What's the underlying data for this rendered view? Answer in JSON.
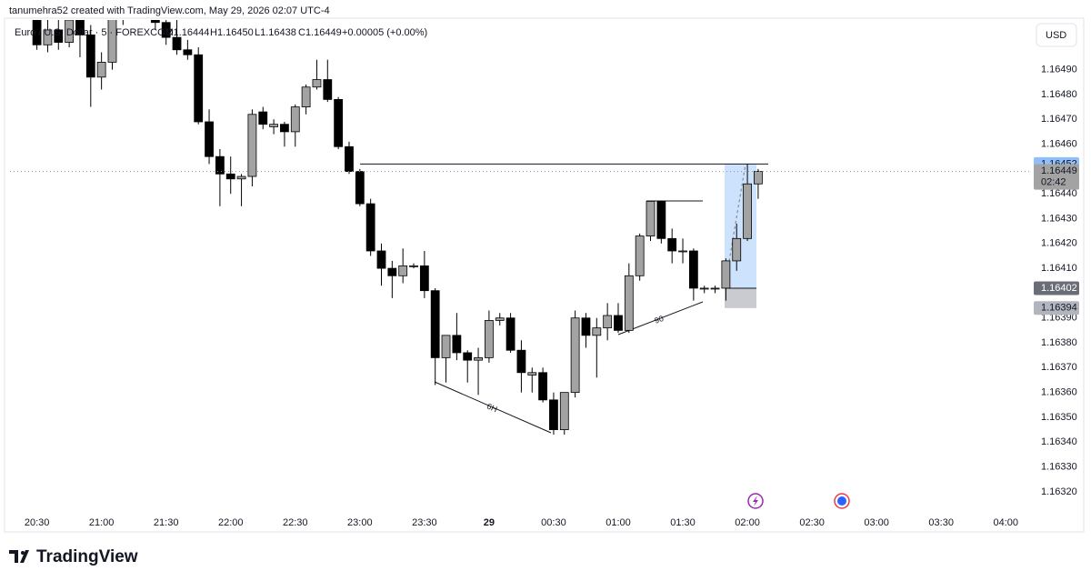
{
  "header": {
    "credit": "tanumehra52 created with TradingView.com, May 29, 2026 02:07 UTC-4",
    "currency": "USD",
    "brand": "TradingView"
  },
  "chart_data": {
    "type": "candlestick",
    "legend": {
      "symbol": "Euro / U.S. Dollar · 5 · FOREXCOM",
      "open": "O1.16444",
      "high": "H1.16450",
      "low": "L1.16438",
      "close": "C1.16449",
      "change": "+0.00005 (+0.00%)"
    },
    "categories": [
      null,
      null,
      "20:30",
      null,
      null,
      null,
      null,
      null,
      "21:00",
      null,
      null,
      null,
      null,
      null,
      "21:30",
      null,
      null,
      null,
      null,
      null,
      "22:00",
      null,
      null,
      null,
      null,
      null,
      "22:30",
      null,
      null,
      null,
      null,
      null,
      "23:00",
      null,
      null,
      null,
      null,
      null,
      "23:30",
      null,
      null,
      null,
      null,
      null,
      "29",
      null,
      null,
      null,
      null,
      null,
      "00:30",
      null,
      null,
      null,
      null,
      null,
      "01:00",
      null,
      null,
      null,
      null,
      null,
      "01:30",
      null,
      null,
      null,
      null,
      null,
      "02:00",
      null,
      null,
      null,
      null,
      null,
      "02:30",
      null,
      null,
      null,
      null,
      null,
      "03:00",
      null,
      null,
      null,
      null,
      null,
      "03:30",
      null,
      null,
      null,
      null,
      null,
      "04:00",
      null
    ],
    "open": [
      null,
      null,
      1.16512,
      1.165,
      1.16506,
      1.16501,
      1.1651,
      1.16504,
      1.16487,
      1.16493,
      1.16512,
      1.1652,
      1.16518,
      1.16514,
      1.16509,
      1.16503,
      1.16498,
      1.16496,
      1.16469,
      1.16455,
      1.16448,
      1.16446,
      1.16447,
      1.16473,
      1.16467,
      1.16468,
      1.16465,
      1.16475,
      1.16483,
      1.16486,
      1.16478,
      1.16459,
      1.16449,
      1.16436,
      1.16417,
      1.1641,
      1.16407,
      1.16411,
      1.16411,
      1.16401,
      1.16374,
      1.16383,
      1.16376,
      1.16373,
      1.16374,
      1.16389,
      1.1639,
      1.16377,
      1.16367,
      1.16368,
      1.16357,
      1.16345,
      1.1636,
      1.1639,
      1.16383,
      1.16386,
      1.16391,
      1.16385,
      1.16407,
      1.16423,
      1.16437,
      1.16422,
      1.16417,
      1.16417,
      1.16402,
      1.16402,
      1.16402,
      1.16413,
      1.16422,
      1.16444,
      null,
      null,
      null,
      null,
      null,
      null,
      null,
      null,
      null,
      null,
      null,
      null,
      null,
      null,
      null,
      null,
      null,
      null,
      null,
      null,
      null,
      null,
      null,
      null
    ],
    "high": [
      null,
      null,
      1.1652,
      1.16512,
      1.1651,
      1.16515,
      1.16515,
      1.16508,
      1.16497,
      1.1652,
      1.16525,
      1.1653,
      1.16524,
      1.16518,
      1.16512,
      1.16512,
      1.16502,
      1.16499,
      1.16474,
      1.16458,
      1.16455,
      1.16448,
      1.16474,
      1.16475,
      1.1647,
      1.16469,
      1.16476,
      1.16484,
      1.16494,
      1.16494,
      1.16479,
      1.16461,
      1.1645,
      1.16438,
      1.1642,
      1.16413,
      1.16418,
      1.16412,
      1.16417,
      1.16402,
      1.16383,
      1.16392,
      1.16377,
      1.16378,
      1.16393,
      1.16392,
      1.16392,
      1.16381,
      1.1637,
      1.1637,
      1.1636,
      1.1636,
      1.16393,
      1.16392,
      1.1639,
      1.16396,
      1.16396,
      1.16412,
      1.16424,
      1.16437,
      1.16437,
      1.16426,
      1.16422,
      1.16418,
      1.16403,
      1.16403,
      1.16414,
      1.16428,
      1.16452,
      1.1645,
      null,
      null,
      null,
      null,
      null,
      null,
      null,
      null,
      null,
      null,
      null,
      null,
      null,
      null,
      null,
      null,
      null,
      null,
      null,
      null,
      null,
      null,
      null,
      null
    ],
    "low": [
      null,
      null,
      1.16498,
      1.16497,
      1.16498,
      1.16499,
      1.16495,
      1.16475,
      1.16482,
      1.1649,
      1.16508,
      1.16515,
      1.1651,
      1.16506,
      1.165,
      1.16496,
      1.16494,
      1.16468,
      1.16452,
      1.16435,
      1.1644,
      1.16435,
      1.16443,
      1.16466,
      1.16464,
      1.16459,
      1.16459,
      1.16472,
      1.16482,
      1.16477,
      1.16458,
      1.16448,
      1.16435,
      1.16415,
      1.16403,
      1.16398,
      1.16404,
      1.1641,
      1.16398,
      1.16363,
      1.16364,
      1.16373,
      1.16364,
      1.16359,
      1.16372,
      1.16387,
      1.16376,
      1.1636,
      1.1636,
      1.16356,
      1.16343,
      1.16343,
      1.16358,
      1.16378,
      1.16366,
      1.16381,
      1.16384,
      1.16384,
      1.16405,
      1.16421,
      1.1642,
      1.16412,
      1.16412,
      1.16397,
      1.164,
      1.164,
      1.16397,
      1.16409,
      1.16421,
      1.16438,
      null,
      null,
      null,
      null,
      null,
      null,
      null,
      null,
      null,
      null,
      null,
      null,
      null,
      null,
      null,
      null,
      null,
      null,
      null,
      null,
      null,
      null,
      null,
      null
    ],
    "close": [
      null,
      null,
      1.165,
      1.16506,
      1.16501,
      1.1651,
      1.16504,
      1.16487,
      1.16493,
      1.16512,
      1.1652,
      1.16518,
      1.16514,
      1.16509,
      1.16503,
      1.16498,
      1.16496,
      1.16469,
      1.16455,
      1.16448,
      1.16446,
      1.16447,
      1.16472,
      1.16468,
      1.16468,
      1.16465,
      1.16475,
      1.16483,
      1.16486,
      1.16478,
      1.16459,
      1.16449,
      1.16436,
      1.16417,
      1.1641,
      1.16407,
      1.16411,
      1.16411,
      1.16401,
      1.16374,
      1.16383,
      1.16376,
      1.16373,
      1.16374,
      1.16389,
      1.1639,
      1.16377,
      1.16368,
      1.16368,
      1.16357,
      1.16345,
      1.1636,
      1.1639,
      1.16383,
      1.16386,
      1.16391,
      1.16385,
      1.16407,
      1.16423,
      1.16437,
      1.16422,
      1.16417,
      1.16417,
      1.16402,
      1.16402,
      1.16402,
      1.16413,
      1.16422,
      1.16444,
      1.16449,
      null,
      null,
      null,
      null,
      null,
      null,
      null,
      null,
      null,
      null,
      null,
      null,
      null,
      null,
      null,
      null,
      null,
      null,
      null,
      null,
      null,
      null,
      null,
      null
    ],
    "up_color": "#a3a3a3",
    "down_color": "#000000",
    "wick_color": "#000000",
    "ylim": [
      1.16313,
      1.1651
    ],
    "yticks": [
      {
        "value": 1.1649,
        "label": "1.16490"
      },
      {
        "value": 1.1648,
        "label": "1.16480"
      },
      {
        "value": 1.1647,
        "label": "1.16470"
      },
      {
        "value": 1.1646,
        "label": "1.16460"
      },
      {
        "value": 1.1644,
        "label": "1.16440"
      },
      {
        "value": 1.1643,
        "label": "1.16430"
      },
      {
        "value": 1.1642,
        "label": "1.16420"
      },
      {
        "value": 1.1641,
        "label": "1.16410"
      },
      {
        "value": 1.1639,
        "label": "1.16390"
      },
      {
        "value": 1.1638,
        "label": "1.16380"
      },
      {
        "value": 1.1637,
        "label": "1.16370"
      },
      {
        "value": 1.1636,
        "label": "1.16360"
      },
      {
        "value": 1.1635,
        "label": "1.16350"
      },
      {
        "value": 1.1634,
        "label": "1.16340"
      },
      {
        "value": 1.1633,
        "label": "1.16330"
      },
      {
        "value": 1.1632,
        "label": "1.16320"
      }
    ],
    "grid": false,
    "price_labels": [
      {
        "value": 1.16452,
        "label": "1.16452",
        "color": "#90bff9",
        "text_color": "#131722"
      },
      {
        "value": 1.16449,
        "label": "1.16449",
        "sub": "02:42",
        "color": "#a3a3a3",
        "text_color": "#131722"
      },
      {
        "value": 1.16402,
        "label": "1.16402",
        "color": "#6a6d78",
        "text_color": "#ffffff"
      },
      {
        "value": 1.16394,
        "label": "1.16394",
        "color": "#b2b5be",
        "text_color": "#131722"
      }
    ],
    "annotations": [
      "6H",
      "90"
    ]
  }
}
